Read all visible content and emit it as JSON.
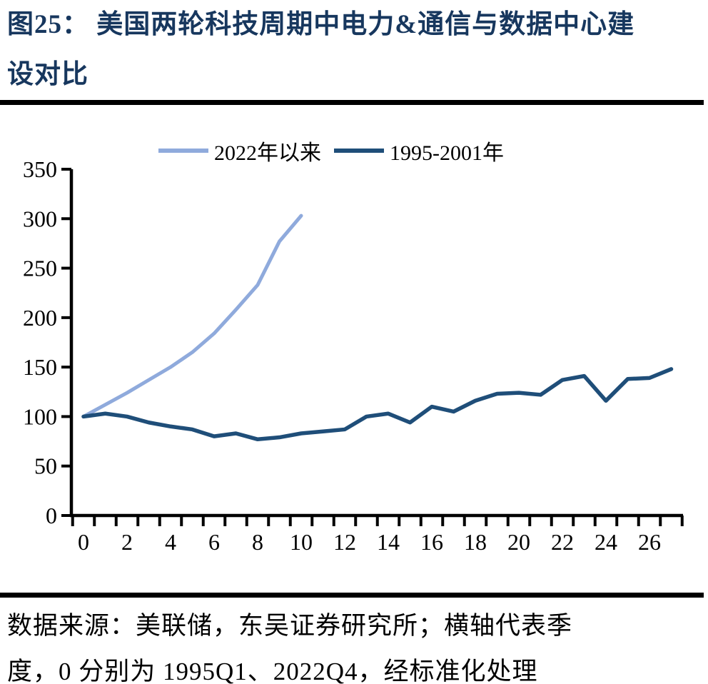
{
  "title": {
    "line1": "图25：  美国两轮科技周期中电力&通信与数据中心建",
    "line2": "设对比"
  },
  "chart_data": {
    "type": "line",
    "title": "美国两轮科技周期中电力&通信与数据中心建设对比",
    "xlabel": "",
    "ylabel": "",
    "x": [
      0,
      1,
      2,
      3,
      4,
      5,
      6,
      7,
      8,
      9,
      10,
      11,
      12,
      13,
      14,
      15,
      16,
      17,
      18,
      19,
      20,
      21,
      22,
      23,
      24,
      25,
      26,
      27
    ],
    "series": [
      {
        "name": "2022年以来",
        "color": "#8FAADC",
        "values": [
          100,
          112,
          124,
          137,
          150,
          165,
          184,
          208,
          233,
          277,
          303
        ]
      },
      {
        "name": "1995-2001年",
        "color": "#1F4E79",
        "values": [
          100,
          103,
          100,
          94,
          90,
          87,
          80,
          83,
          77,
          79,
          83,
          85,
          87,
          100,
          103,
          94,
          110,
          105,
          116,
          123,
          124,
          122,
          137,
          141,
          116,
          138,
          139,
          148
        ]
      }
    ],
    "ylim": [
      0,
      350
    ],
    "y_ticks": [
      0,
      50,
      100,
      150,
      200,
      250,
      300,
      350
    ],
    "x_tick_labels": [
      0,
      2,
      4,
      6,
      8,
      10,
      12,
      14,
      16,
      18,
      20,
      22,
      24,
      26
    ],
    "grid": "off",
    "legend_position": "top",
    "axis_color": "#000000"
  },
  "footer": {
    "line1": "数据来源：美联储，东吴证券研究所；横轴代表季",
    "line2": "度，0 分别为 1995Q1、2022Q4，经标准化处理"
  }
}
